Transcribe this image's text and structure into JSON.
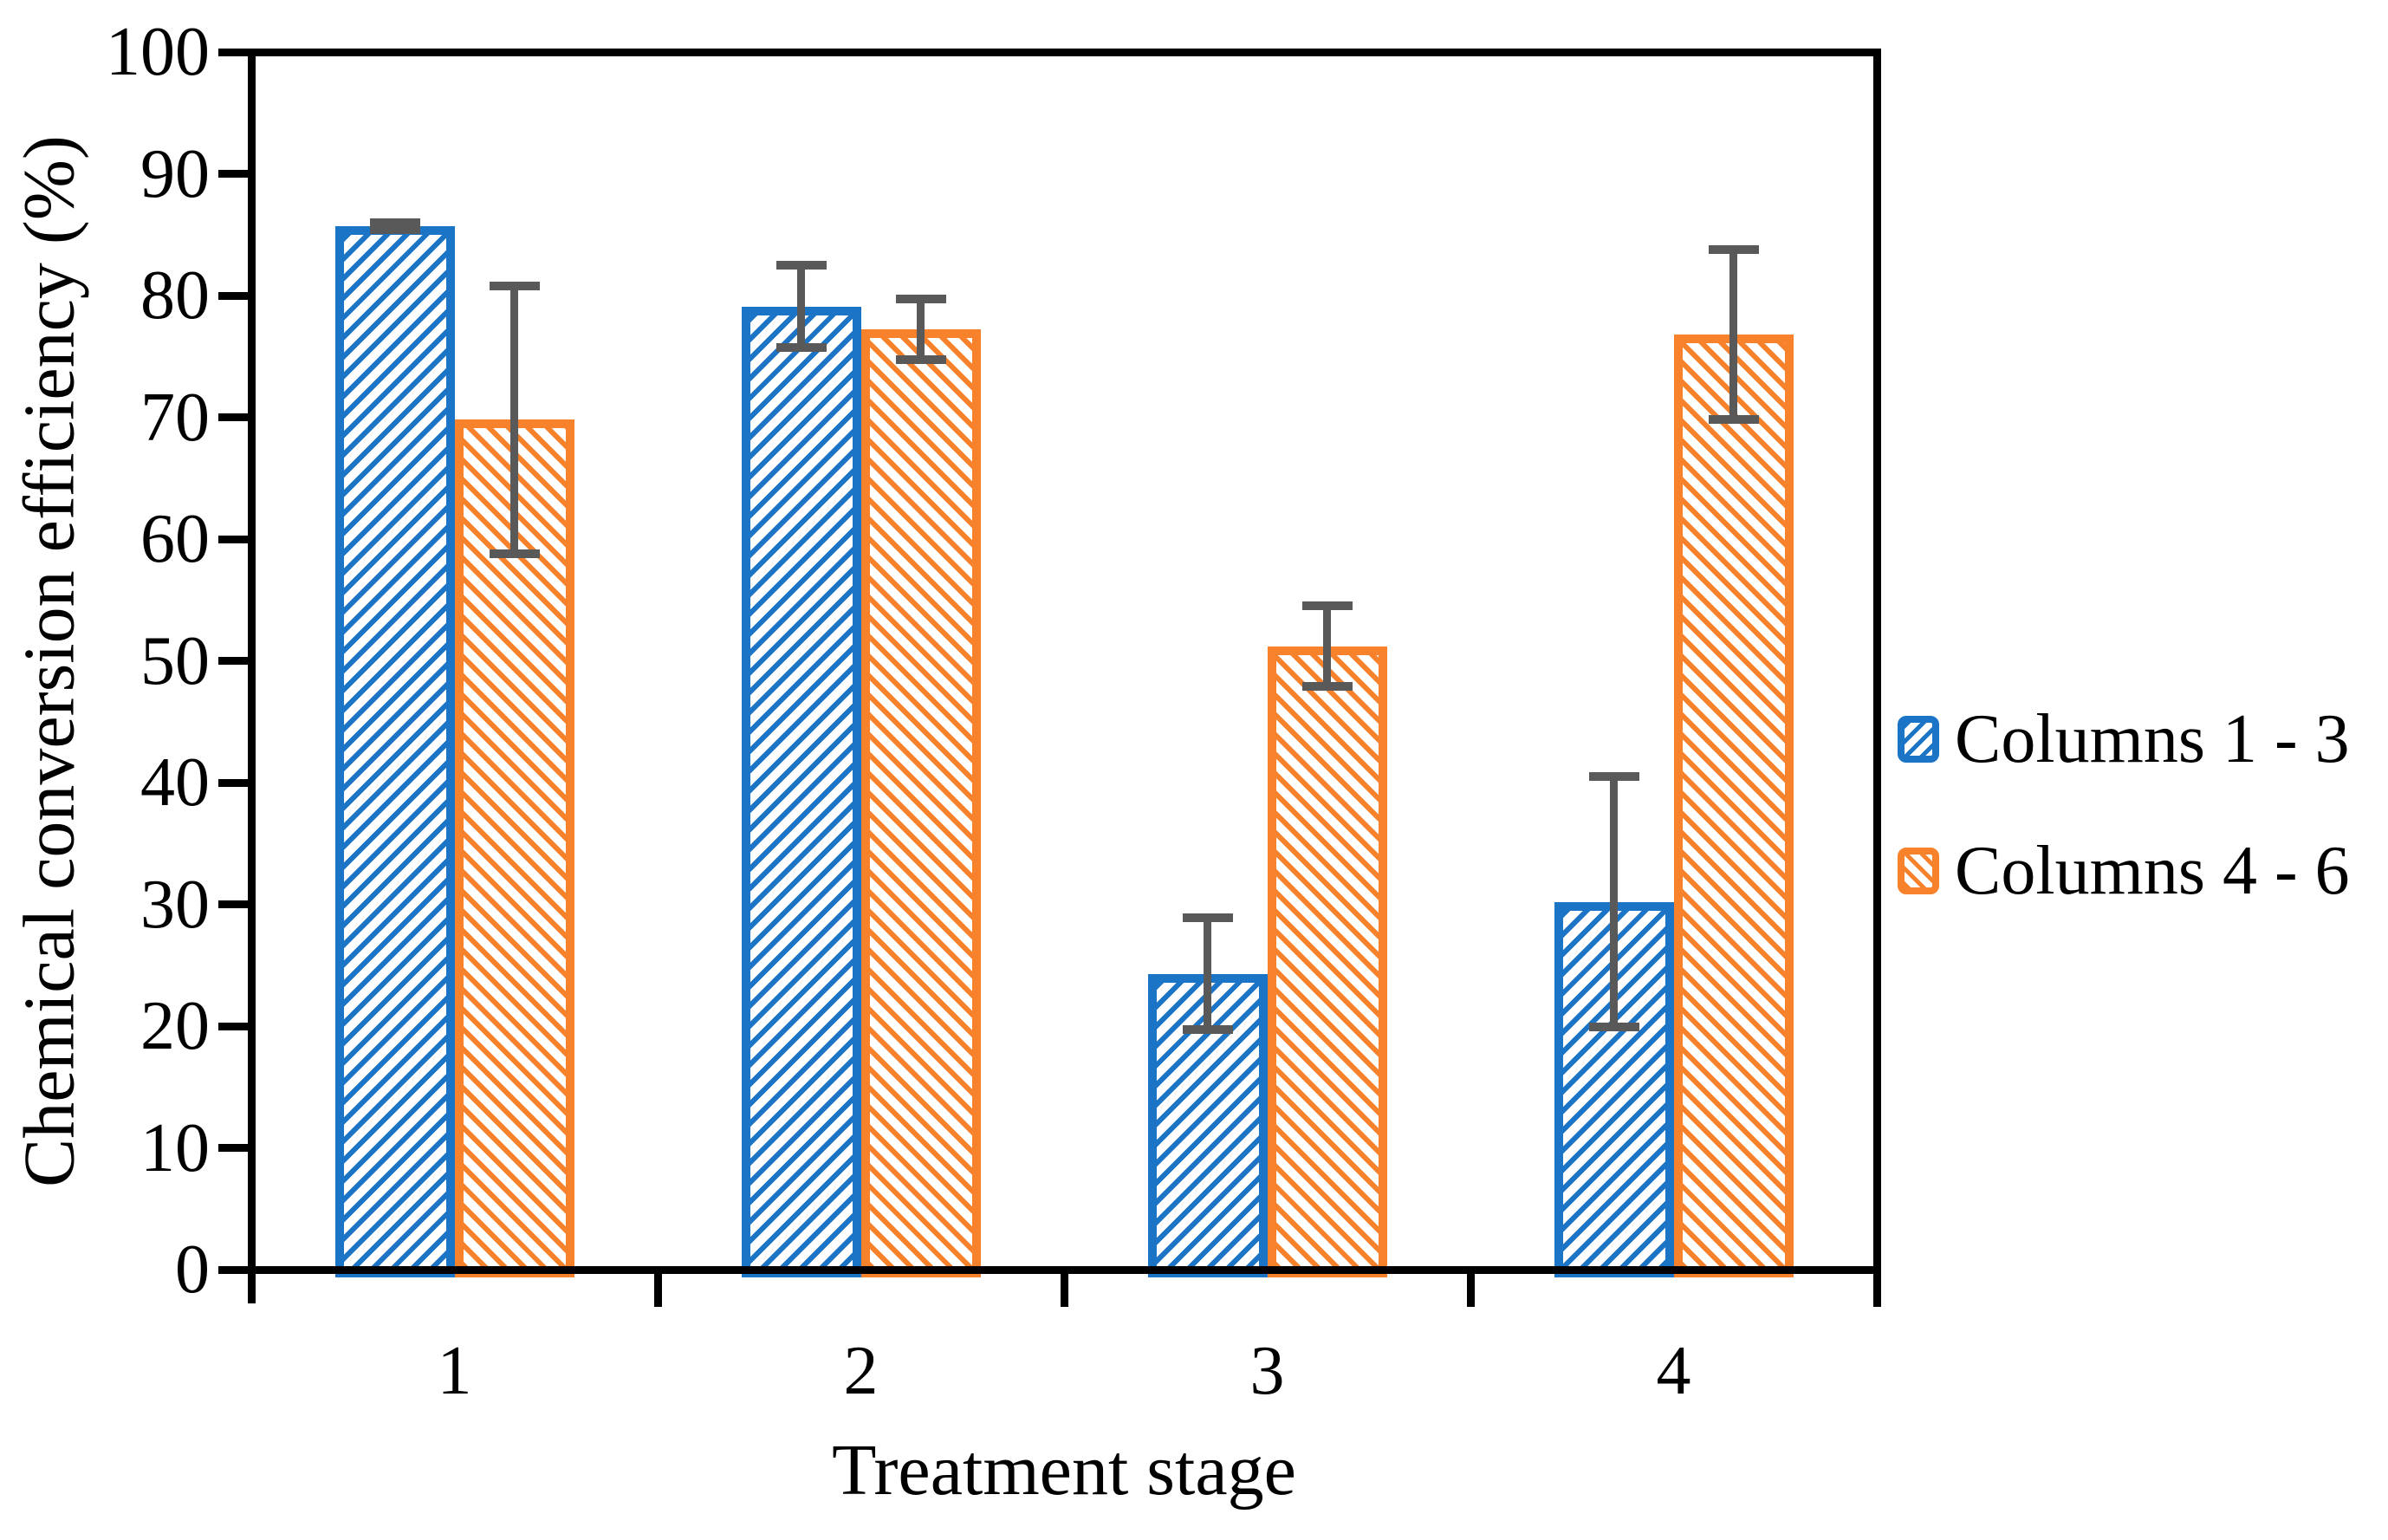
{
  "chart_data": {
    "type": "bar",
    "title": "",
    "xlabel": "Treatment stage",
    "ylabel": "Chemical conversion efficiency (%)",
    "categories": [
      "1",
      "2",
      "3",
      "4"
    ],
    "series": [
      {
        "name": "Columns 1 - 3",
        "color": "#1B74C6",
        "hatch": "/",
        "values": [
          85.7,
          79.1,
          24.3,
          30.2
        ],
        "errors": [
          0.3,
          3.4,
          4.6,
          10.3
        ]
      },
      {
        "name": "Columns 4 - 6",
        "color": "#F8812C",
        "hatch": "\\",
        "values": [
          69.8,
          77.2,
          51.2,
          76.8
        ],
        "errors": [
          11.0,
          2.5,
          3.3,
          7.0
        ]
      }
    ],
    "ylim": [
      0,
      100
    ],
    "ytick_step": 10,
    "ytick_labels": [
      "0",
      "10",
      "20",
      "30",
      "40",
      "50",
      "60",
      "70",
      "80",
      "90",
      "100"
    ],
    "grid": false,
    "legend_position": "right",
    "error_bar_color": "#595959",
    "axis_color": "#000000"
  }
}
